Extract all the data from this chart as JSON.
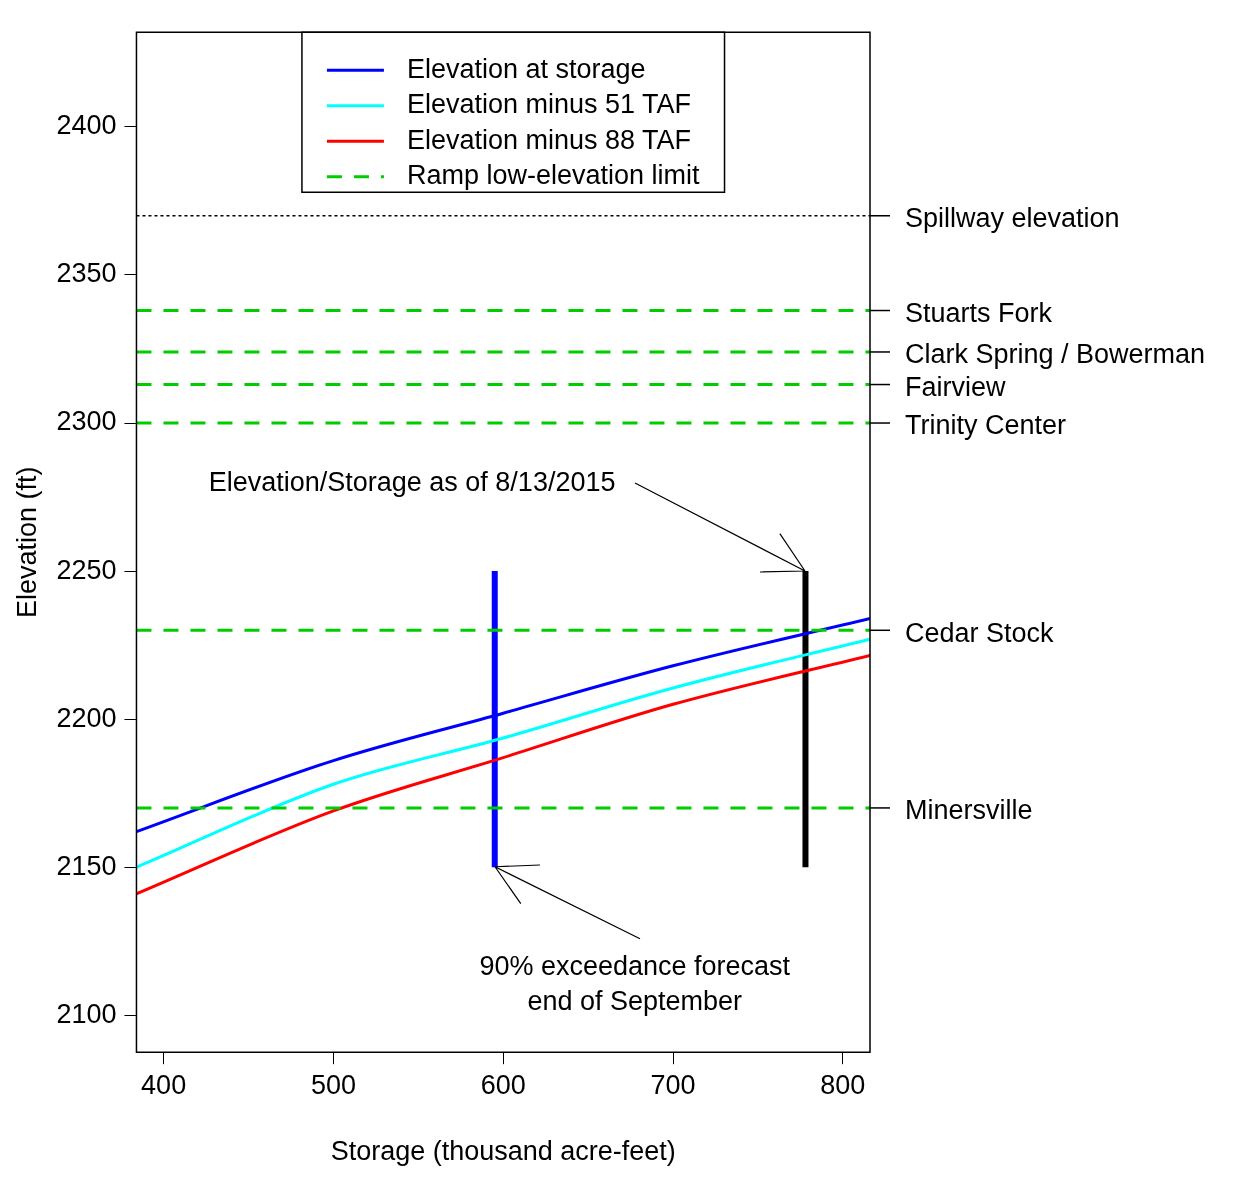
{
  "chart_data": {
    "type": "line",
    "xlabel": "Storage (thousand acre-feet)",
    "ylabel": "Elevation (ft)",
    "xlim": [
      384,
      816
    ],
    "ylim": [
      2087.5,
      2432
    ],
    "xticks": [
      400,
      500,
      600,
      700,
      800
    ],
    "yticks": [
      2100,
      2150,
      2200,
      2250,
      2300,
      2350,
      2400
    ],
    "grid": false,
    "legend": "top",
    "line_style": "solid",
    "marker": "none",
    "series": [
      {
        "name": "Elevation at storage",
        "color": "#0000ff",
        "x": [
          384,
          500,
          600,
          700,
          816
        ],
        "values": [
          2162,
          2186,
          2202,
          2218,
          2234
        ]
      },
      {
        "name": "Elevation minus 51 TAF",
        "color": "#00ffff",
        "x": [
          384,
          500,
          600,
          700,
          816
        ],
        "values": [
          2150,
          2178,
          2193.6,
          2210.5,
          2227
        ]
      },
      {
        "name": "Elevation minus 88 TAF",
        "color": "#ff0000",
        "x": [
          384,
          500,
          600,
          700,
          816
        ],
        "values": [
          2141,
          2169,
          2187,
          2205,
          2221.5
        ]
      },
      {
        "name": "Ramp low-elevation limit",
        "color": "#00cc00",
        "line_style": "dashed"
      },
      {
        "color": "#0000ff",
        "x": [
          595,
          595
        ],
        "values": [
          2150,
          2250
        ]
      },
      {
        "color": "#000000",
        "x": [
          778,
          778
        ],
        "values": [
          2150,
          2250
        ]
      }
    ],
    "ref_lines": [
      {
        "axis": "y",
        "value": 2370,
        "label": "Spillway elevation",
        "color": "#000000",
        "line_style": "dotted"
      },
      {
        "axis": "y",
        "value": 2338,
        "label": "Stuarts Fork",
        "color": "#00cc00",
        "line_style": "dashed"
      },
      {
        "axis": "y",
        "value": 2324,
        "label": "Clark Spring / Bowerman",
        "color": "#00cc00",
        "line_style": "dashed"
      },
      {
        "axis": "y",
        "value": 2313,
        "label": "Fairview",
        "color": "#00cc00",
        "line_style": "dashed"
      },
      {
        "axis": "y",
        "value": 2300,
        "label": "Trinity Center",
        "color": "#00cc00",
        "line_style": "dashed"
      },
      {
        "axis": "y",
        "value": 2230,
        "label": "Cedar Stock",
        "color": "#00cc00",
        "line_style": "dashed"
      },
      {
        "axis": "y",
        "value": 2170,
        "label": "Minersville",
        "color": "#00cc00",
        "line_style": "dashed"
      }
    ],
    "annotations": [
      {
        "text": "Elevation/Storage as of 8/13/2015",
        "x": 778,
        "y": 2250
      },
      {
        "text": "90% exceedance forecast end of September",
        "x": 595,
        "y": 2150
      }
    ]
  }
}
